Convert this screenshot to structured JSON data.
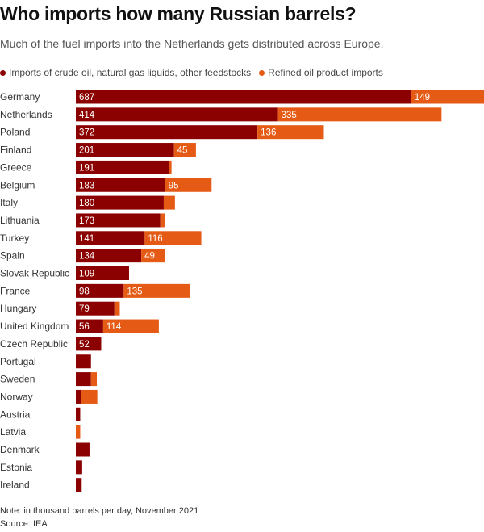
{
  "title": "Who imports how many Russian barrels?",
  "subtitle": "Much of the fuel imports into the Netherlands gets distributed across Europe.",
  "note": "Note: in thousand barrels per day, November 2021",
  "source": "Source: IEA",
  "chart_data": {
    "type": "bar",
    "orientation": "horizontal",
    "stacked": true,
    "categories": [
      "Germany",
      "Netherlands",
      "Poland",
      "Finland",
      "Greece",
      "Belgium",
      "Italy",
      "Lithuania",
      "Turkey",
      "Spain",
      "Slovak Republic",
      "France",
      "Hungary",
      "United Kingdom",
      "Czech Republic",
      "Portugal",
      "Sweden",
      "Norway",
      "Austria",
      "Latvia",
      "Denmark",
      "Estonia",
      "Ireland"
    ],
    "series": [
      {
        "name": "Imports of crude oil, natural gas liquids, other feedstocks",
        "color": "#8b0000",
        "values": [
          687,
          414,
          372,
          201,
          191,
          183,
          180,
          173,
          141,
          134,
          109,
          98,
          79,
          56,
          52,
          31,
          31,
          10,
          9,
          0,
          28,
          13,
          12
        ],
        "labeled": [
          true,
          true,
          true,
          true,
          true,
          true,
          true,
          true,
          true,
          true,
          true,
          true,
          true,
          true,
          true,
          false,
          false,
          false,
          false,
          false,
          false,
          false,
          false
        ]
      },
      {
        "name": "Refined oil product imports",
        "color": "#e55a14",
        "values": [
          149,
          335,
          136,
          45,
          5,
          95,
          23,
          9,
          116,
          49,
          0,
          135,
          11,
          114,
          0,
          0,
          12,
          34,
          0,
          9,
          0,
          0,
          0
        ],
        "labeled": [
          true,
          true,
          true,
          true,
          false,
          true,
          false,
          false,
          true,
          true,
          false,
          true,
          false,
          true,
          false,
          false,
          false,
          false,
          false,
          false,
          false,
          false,
          false
        ]
      }
    ],
    "xlim": [
      0,
      836
    ],
    "legend": "top-left",
    "grid": false
  }
}
